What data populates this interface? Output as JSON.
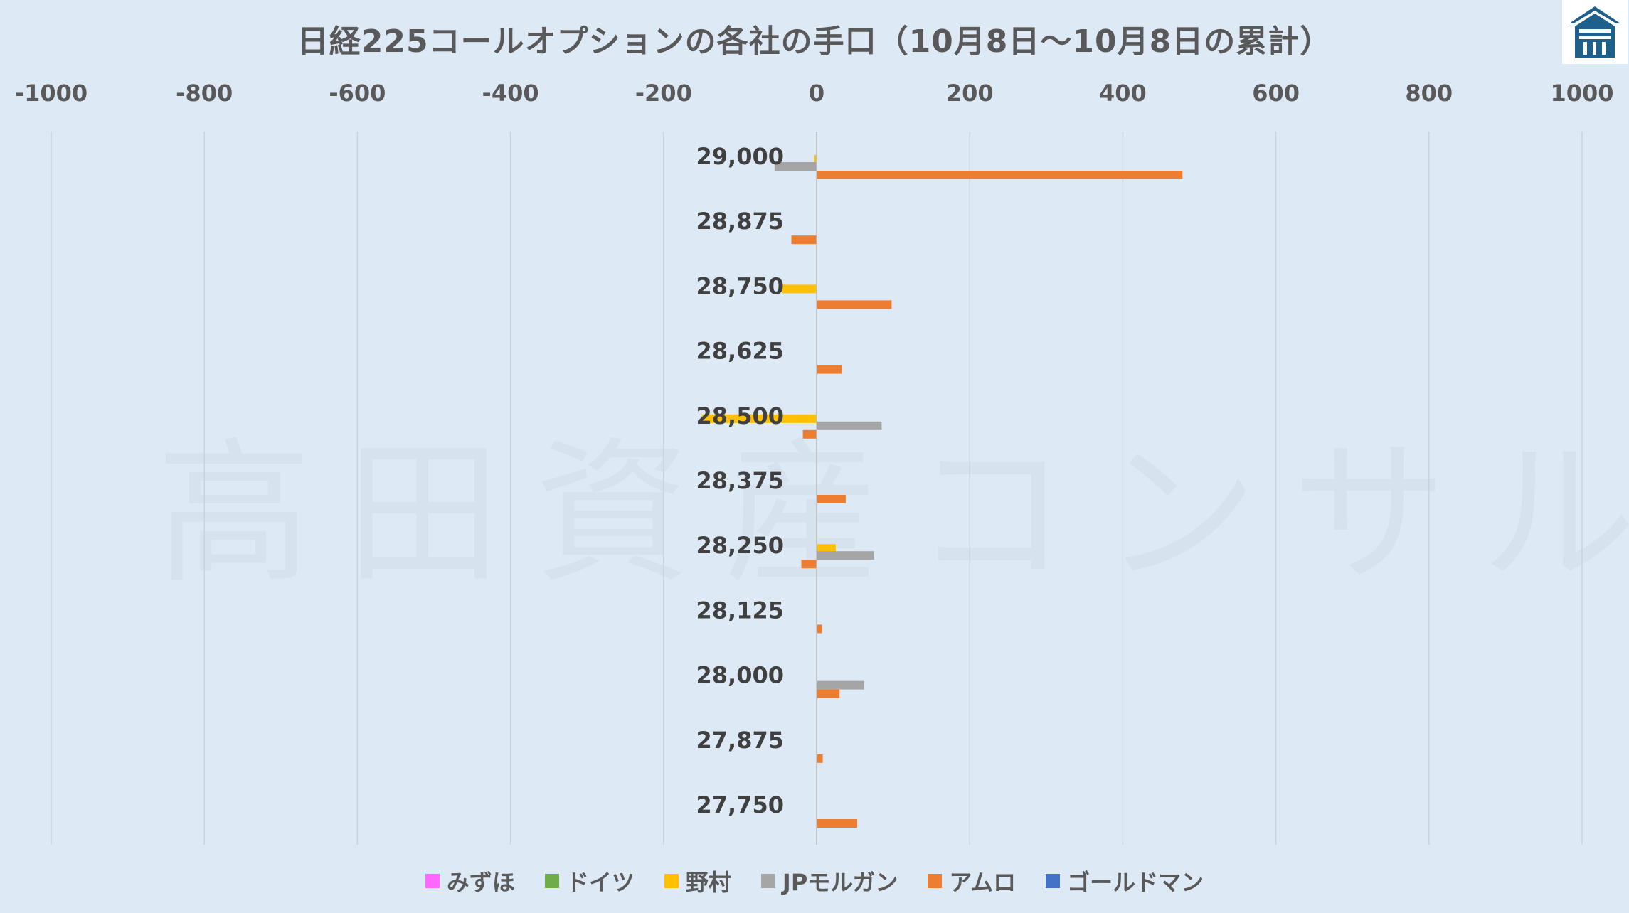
{
  "chart_data": {
    "type": "bar",
    "orientation": "horizontal",
    "title": "日経225コールオプションの各社の手口（10月8日～10月8日の累計）",
    "xlim": [
      -1000,
      1000
    ],
    "x_ticks": [
      "-1000",
      "-800",
      "-600",
      "-400",
      "-200",
      "0",
      "200",
      "400",
      "600",
      "800",
      "1000"
    ],
    "x_tick_values": [
      -1000,
      -800,
      -600,
      -400,
      -200,
      0,
      200,
      400,
      600,
      800,
      1000
    ],
    "axis_position": "top",
    "grid": "vertical",
    "legend_position": "bottom",
    "categories": [
      "29,000",
      "28,875",
      "28,750",
      "28,625",
      "28,500",
      "28,375",
      "28,250",
      "28,125",
      "28,000",
      "27,875",
      "27,750"
    ],
    "series": [
      {
        "name": "みずほ",
        "color": "#ff66ff",
        "values": [
          0,
          0,
          0,
          0,
          0,
          0,
          0,
          0,
          0,
          0,
          0
        ]
      },
      {
        "name": "ドイツ",
        "color": "#70ad47",
        "values": [
          0,
          0,
          0,
          0,
          0,
          0,
          0,
          0,
          0,
          0,
          0
        ]
      },
      {
        "name": "野村",
        "color": "#ffc000",
        "values": [
          -3,
          0,
          -45,
          0,
          -150,
          0,
          25,
          0,
          0,
          0,
          0
        ]
      },
      {
        "name": "JPモルガン",
        "color": "#a5a5a5",
        "values": [
          -55,
          0,
          0,
          0,
          85,
          0,
          75,
          0,
          62,
          0,
          0
        ]
      },
      {
        "name": "アムロ",
        "color": "#ed7d31",
        "values": [
          478,
          -33,
          98,
          33,
          -18,
          38,
          -20,
          7,
          30,
          8,
          53
        ]
      },
      {
        "name": "ゴールドマン",
        "color": "#4472c4",
        "values": [
          0,
          0,
          0,
          0,
          0,
          0,
          0,
          0,
          0,
          0,
          0
        ]
      }
    ]
  },
  "watermark": "高田資産コンサル",
  "logo": {
    "icon": "house-icon",
    "color": "#1f5f8b"
  }
}
